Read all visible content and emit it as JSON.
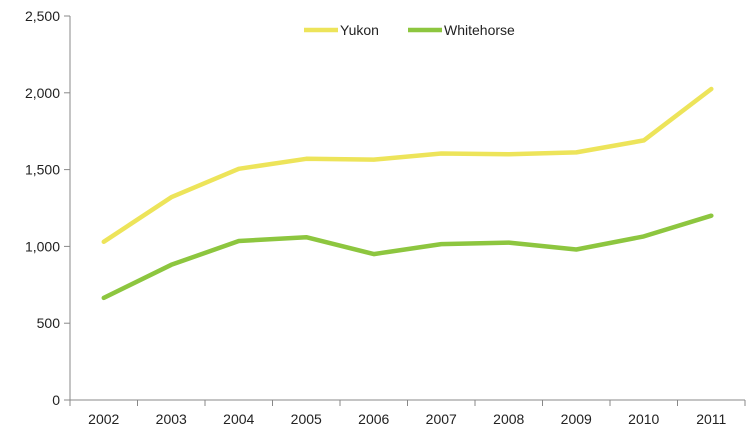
{
  "chart_data": {
    "type": "line",
    "title": "",
    "xlabel": "",
    "ylabel": "",
    "categories": [
      "2002",
      "2003",
      "2004",
      "2005",
      "2006",
      "2007",
      "2008",
      "2009",
      "2010",
      "2011"
    ],
    "y_ticks": [
      "0",
      "500",
      "1,000",
      "1,500",
      "2,000",
      "2,500"
    ],
    "ylim": [
      0,
      2500
    ],
    "grid": false,
    "legend_position": "top-center",
    "series": [
      {
        "name": "Yukon",
        "color": "#ede45a",
        "values": [
          1030,
          1320,
          1505,
          1570,
          1565,
          1605,
          1600,
          1612,
          1690,
          2025
        ]
      },
      {
        "name": "Whitehorse",
        "color": "#8dc63f",
        "values": [
          665,
          880,
          1035,
          1060,
          950,
          1015,
          1025,
          980,
          1065,
          1200
        ]
      }
    ]
  }
}
